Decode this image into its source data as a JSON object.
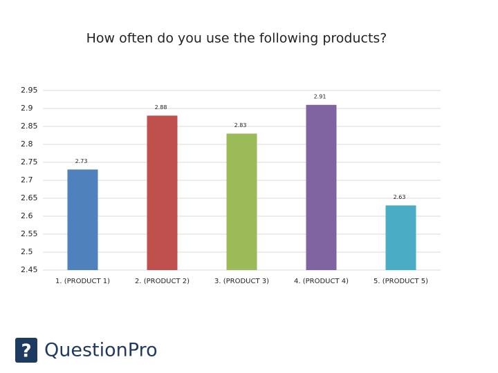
{
  "chart_data": {
    "type": "bar",
    "title": "How often do you use the following products?",
    "categories": [
      "1. (PRODUCT 1)",
      "2. (PRODUCT 2)",
      "3. (PRODUCT 3)",
      "4. (PRODUCT 4)",
      "5. (PRODUCT 5)"
    ],
    "values": [
      2.73,
      2.88,
      2.83,
      2.91,
      2.63
    ],
    "colors": [
      "#4f81bd",
      "#c0504d",
      "#9bbb59",
      "#8064a2",
      "#4bacc6"
    ],
    "ylim": [
      2.45,
      2.95
    ],
    "yticks": [
      2.45,
      2.5,
      2.55,
      2.6,
      2.65,
      2.7,
      2.75,
      2.8,
      2.85,
      2.9,
      2.95
    ],
    "grid": true
  },
  "logo": "QuestionPro"
}
